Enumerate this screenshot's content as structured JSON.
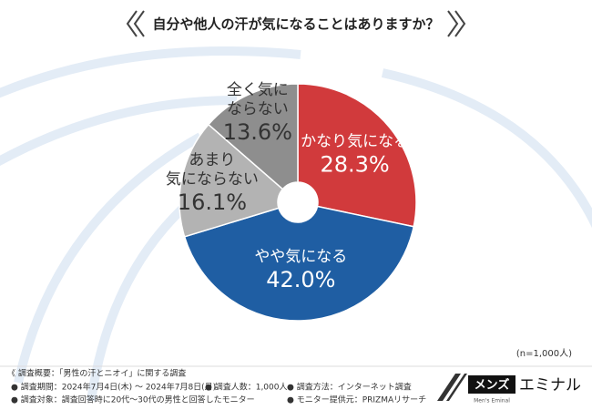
{
  "chart_data": {
    "type": "donut",
    "title": "自分や他人の汗が気になることはありますか？",
    "categories": [
      "かなり気になる",
      "やや気になる",
      "あまり\n気にならない",
      "全く気に\nならない"
    ],
    "values": [
      28.3,
      42.0,
      16.1,
      13.6
    ],
    "value_labels": [
      "28.3%",
      "42.0%",
      "16.1%",
      "13.6%"
    ],
    "colors": [
      "#d13a3c",
      "#1f5ea3",
      "#b3b3b3",
      "#8e8e8e"
    ],
    "label_colors": [
      "#ffffff",
      "#ffffff",
      "#333333",
      "#333333"
    ],
    "note": "(n=1,000人)"
  },
  "survey": {
    "heading": "《 調査概要：「男性の汗とニオイ」に関する調査",
    "items": [
      "● 調査期間：2024年7月4日(木) 〜 2024年7月8日(月)",
      "● 調査人数：1,000人",
      "● 調査方法：インターネット調査",
      "● 調査対象：調査回答時に20代〜30代の男性と回答したモニター",
      "● モニター提供元：PRIZMAリサーチ"
    ]
  },
  "logo": {
    "left": "メンズ",
    "right": "エミナル",
    "sub": "Men's Eminal"
  }
}
